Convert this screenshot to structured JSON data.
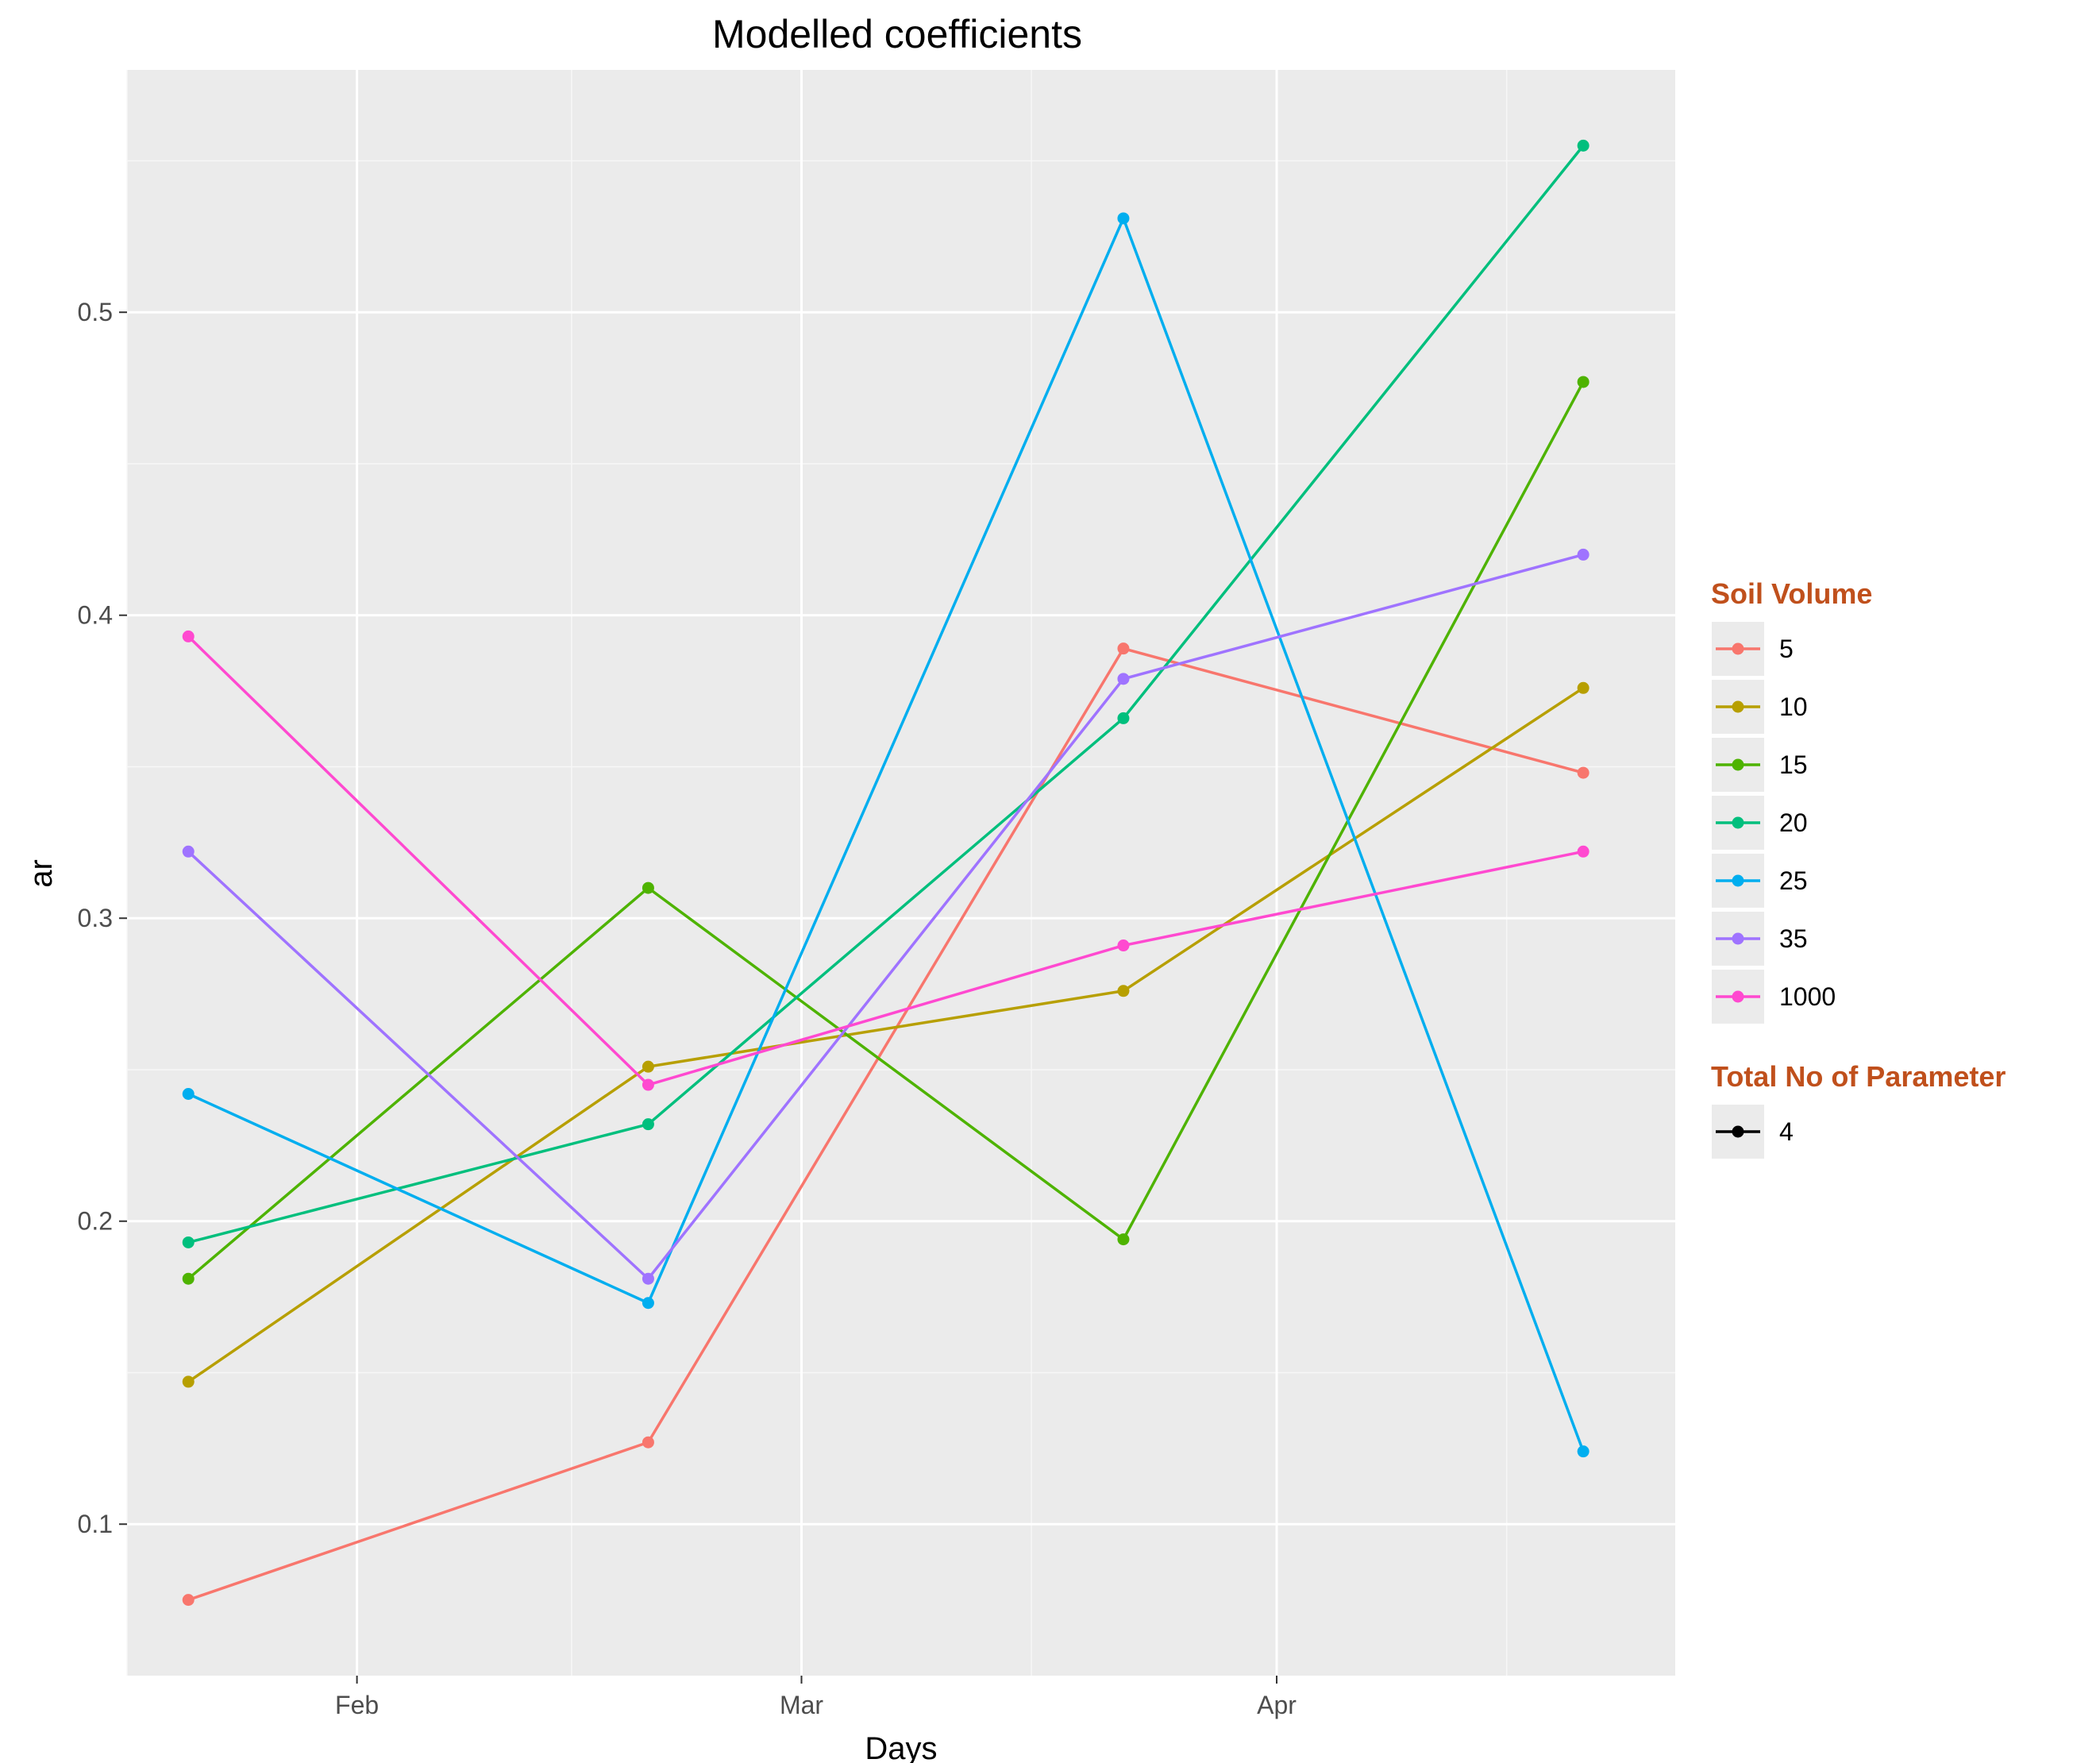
{
  "chart_data": {
    "type": "line",
    "title": "Modelled coefficients",
    "xlabel": "Days",
    "ylabel": "ar",
    "x_ticks": [
      "Feb",
      "Mar",
      "Apr"
    ],
    "x_tick_dates": [
      "2000-02-01",
      "2000-03-01",
      "2000-04-01"
    ],
    "x_range": [
      "2000-01-17",
      "2000-04-27"
    ],
    "x": [
      "2000-01-21",
      "2000-02-20",
      "2000-03-22",
      "2000-04-21"
    ],
    "y_ticks": [
      "0.1",
      "0.2",
      "0.3",
      "0.4",
      "0.5"
    ],
    "ylim": [
      0.05,
      0.58
    ],
    "grid": true,
    "legend_position": "right",
    "legend": [
      {
        "title": "Soil Volume",
        "entries": [
          "5",
          "10",
          "15",
          "20",
          "25",
          "35",
          "1000"
        ]
      },
      {
        "title": "Total No of Parameter",
        "entries": [
          "4"
        ]
      }
    ],
    "series": [
      {
        "name": "5",
        "color": "#f8766d",
        "values": [
          0.075,
          0.127,
          0.389,
          0.348
        ]
      },
      {
        "name": "10",
        "color": "#b79f00",
        "values": [
          0.147,
          0.251,
          0.276,
          0.376
        ]
      },
      {
        "name": "15",
        "color": "#4eb300",
        "values": [
          0.181,
          0.31,
          0.194,
          0.477
        ]
      },
      {
        "name": "20",
        "color": "#00bf7d",
        "values": [
          0.193,
          0.232,
          0.366,
          0.555
        ]
      },
      {
        "name": "25",
        "color": "#00aeef",
        "values": [
          0.242,
          0.173,
          0.531,
          0.124
        ]
      },
      {
        "name": "35",
        "color": "#9f73ff",
        "values": [
          0.322,
          0.181,
          0.379,
          0.42
        ]
      },
      {
        "name": "1000",
        "color": "#ff49d0",
        "values": [
          0.393,
          0.245,
          0.291,
          0.322
        ]
      }
    ]
  }
}
